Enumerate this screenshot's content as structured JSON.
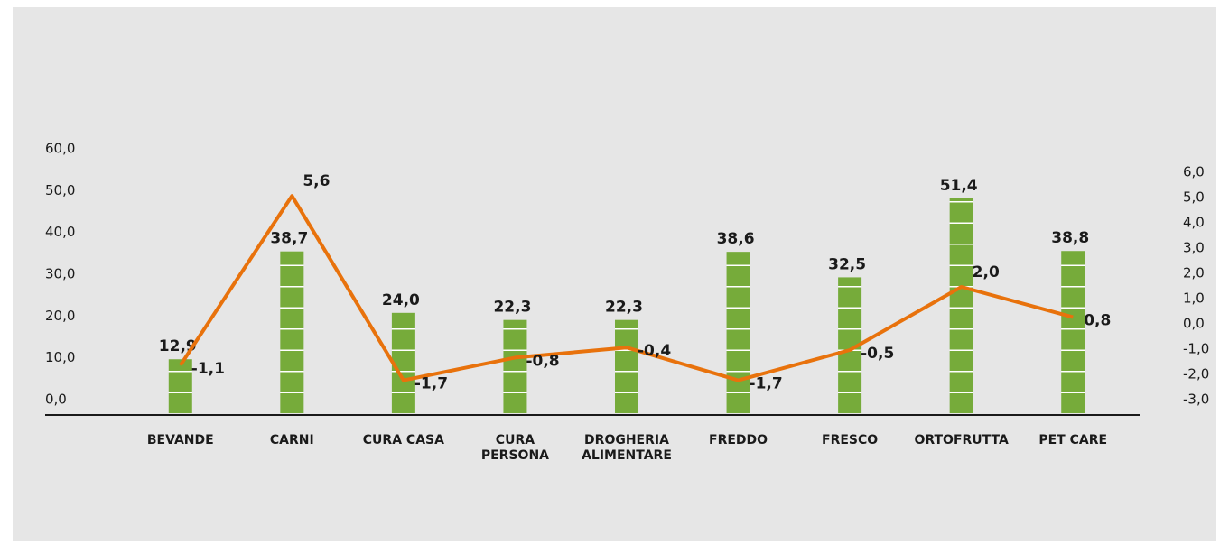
{
  "chart_data": {
    "type": "bar-line",
    "categories": [
      "BEVANDE",
      "CARNI",
      "CURA CASA",
      "CURA PERSONA",
      "DROGHERIA ALIMENTARE",
      "FREDDO",
      "FRESCO",
      "ORTOFRUTTA",
      "PET CARE"
    ],
    "series": [
      {
        "type": "bar",
        "color": "#76ab3a",
        "values": [
          12.9,
          38.7,
          24.0,
          22.3,
          22.3,
          38.6,
          32.5,
          51.4,
          38.8
        ],
        "value_labels": [
          "12,9",
          "38,7",
          "24,0",
          "22,3",
          "22,3",
          "38,6",
          "32,5",
          "51,4",
          "38,8"
        ]
      },
      {
        "type": "line",
        "axis": "y2",
        "color": "#e8720c",
        "values": [
          -1.1,
          5.6,
          -1.7,
          -0.8,
          -0.4,
          -1.7,
          -0.5,
          2.0,
          0.8
        ],
        "value_labels": [
          "-1,1",
          "5,6",
          "-1,7",
          "-0,8",
          "-0,4",
          "-1,7",
          "-0,5",
          "2,0",
          "0,8"
        ]
      }
    ],
    "ylim": [
      0,
      60
    ],
    "yticks": [
      {
        "value": 0,
        "label": "0,0"
      },
      {
        "value": 10,
        "label": "10,0"
      },
      {
        "value": 20,
        "label": "20,0"
      },
      {
        "value": 30,
        "label": "30,0"
      },
      {
        "value": 40,
        "label": "40,0"
      },
      {
        "value": 50,
        "label": "50,0"
      },
      {
        "value": 60,
        "label": "60,0"
      }
    ],
    "y2lim": [
      -3,
      6
    ],
    "y2ticks": [
      {
        "value": -3,
        "label": "-3,0"
      },
      {
        "value": -2,
        "label": "-2,0"
      },
      {
        "value": -1,
        "label": "-1,0"
      },
      {
        "value": 0,
        "label": "0,0"
      },
      {
        "value": 1,
        "label": "1,0"
      },
      {
        "value": 2,
        "label": "2,0"
      },
      {
        "value": 3,
        "label": "3,0"
      },
      {
        "value": 4,
        "label": "4,0"
      },
      {
        "value": 5,
        "label": "5,0"
      },
      {
        "value": 6,
        "label": "6,0"
      }
    ],
    "grid": false
  }
}
